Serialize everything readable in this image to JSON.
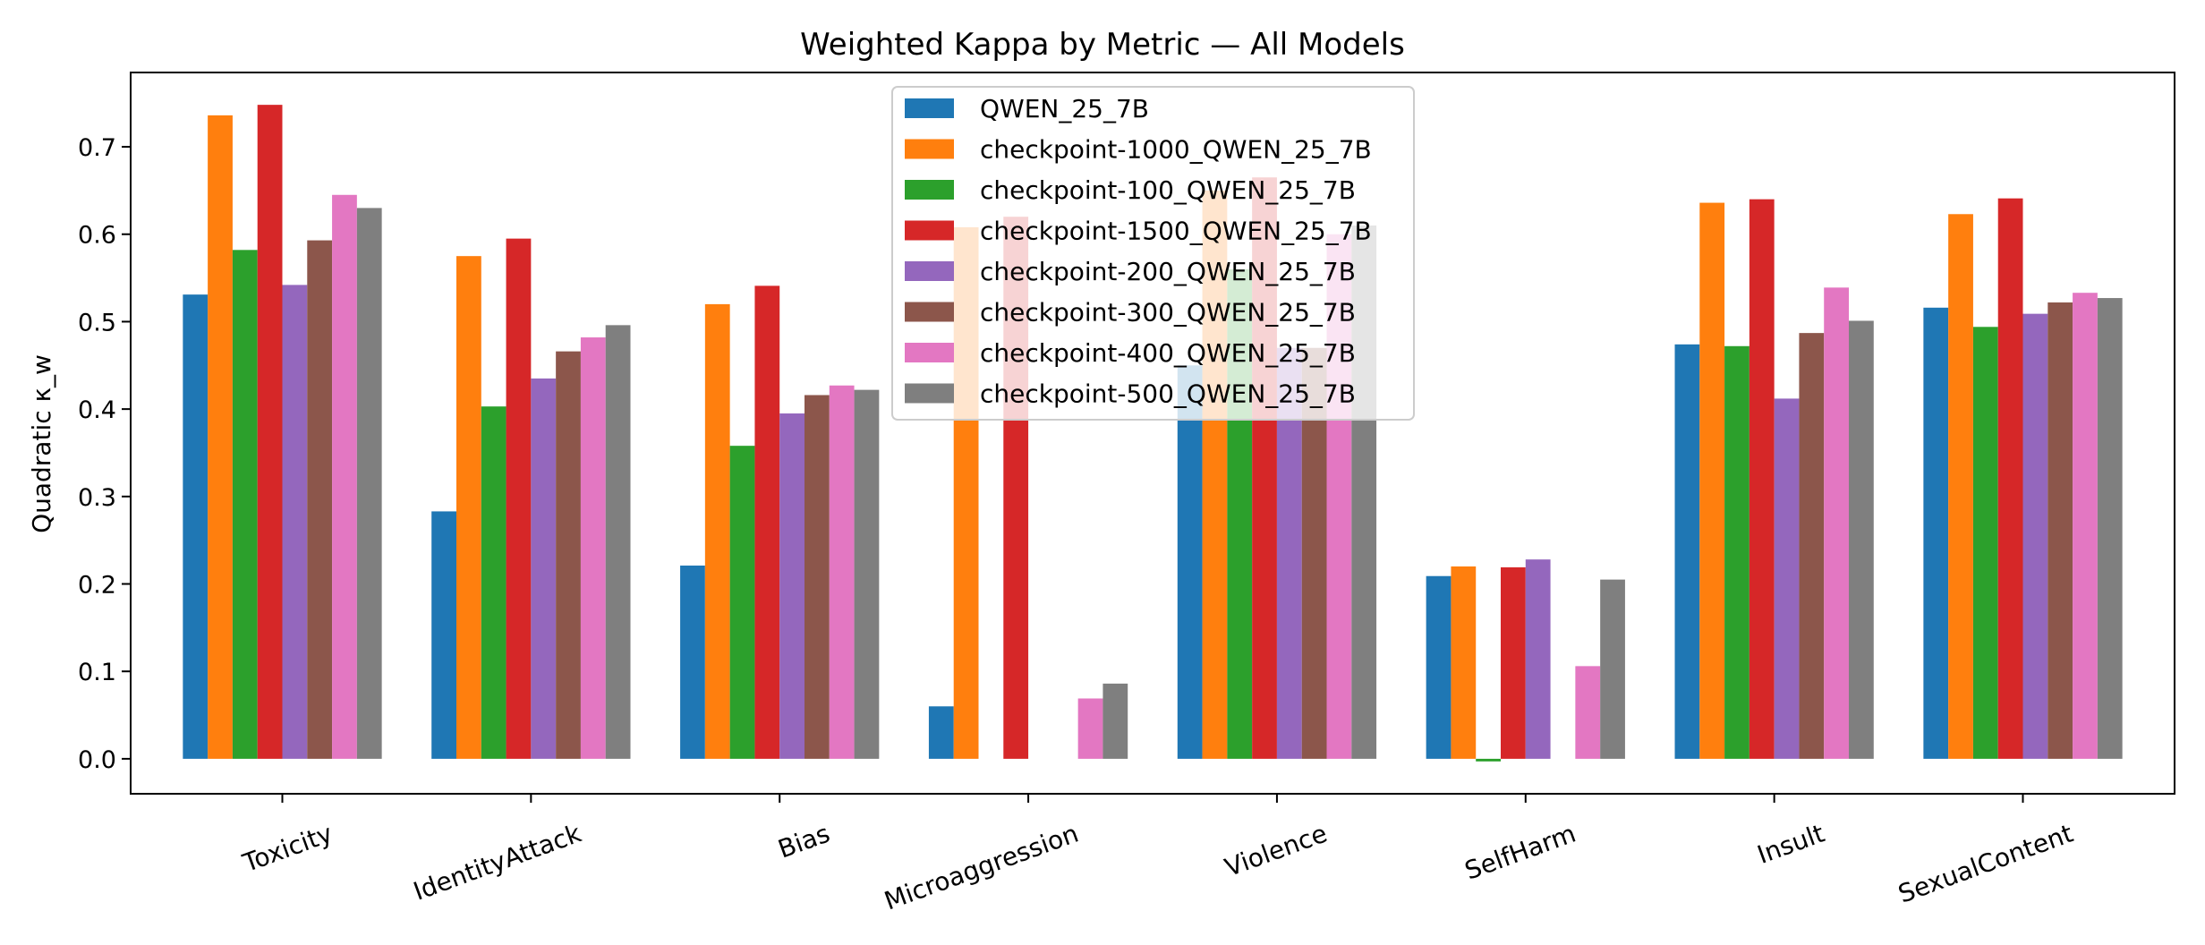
{
  "chart_data": {
    "type": "bar",
    "title": "Weighted Kappa by Metric — All Models",
    "xlabel": "",
    "ylabel": "Quadratic κ_w",
    "ylim": [
      -0.04,
      0.785
    ],
    "yticks": [
      0.0,
      0.1,
      0.2,
      0.3,
      0.4,
      0.5,
      0.6,
      0.7
    ],
    "ytick_labels": [
      "0.0",
      "0.1",
      "0.2",
      "0.3",
      "0.4",
      "0.5",
      "0.6",
      "0.7"
    ],
    "grid": false,
    "legend_position": "top-center",
    "categories": [
      "Toxicity",
      "IdentityAttack",
      "Bias",
      "Microaggression",
      "Violence",
      "SelfHarm",
      "Insult",
      "SexualContent"
    ],
    "series": [
      {
        "name": "QWEN_25_7B",
        "color": "#1f77b4",
        "values": [
          0.531,
          0.283,
          0.221,
          0.06,
          0.45,
          0.209,
          0.474,
          0.516
        ]
      },
      {
        "name": "checkpoint-1000_QWEN_25_7B",
        "color": "#ff7f0e",
        "values": [
          0.736,
          0.575,
          0.52,
          0.608,
          0.65,
          0.22,
          0.636,
          0.623
        ]
      },
      {
        "name": "checkpoint-100_QWEN_25_7B",
        "color": "#2ca02c",
        "values": [
          0.582,
          0.403,
          0.358,
          0.0,
          0.56,
          -0.003,
          0.472,
          0.494
        ]
      },
      {
        "name": "checkpoint-1500_QWEN_25_7B",
        "color": "#d62728",
        "values": [
          0.748,
          0.595,
          0.541,
          0.62,
          0.665,
          0.219,
          0.64,
          0.641
        ]
      },
      {
        "name": "checkpoint-200_QWEN_25_7B",
        "color": "#9467bd",
        "values": [
          0.542,
          0.435,
          0.395,
          0.0,
          0.47,
          0.228,
          0.412,
          0.509
        ]
      },
      {
        "name": "checkpoint-300_QWEN_25_7B",
        "color": "#8c564b",
        "values": [
          0.593,
          0.466,
          0.416,
          0.0,
          0.47,
          0.0,
          0.487,
          0.522
        ]
      },
      {
        "name": "checkpoint-400_QWEN_25_7B",
        "color": "#e377c2",
        "values": [
          0.645,
          0.482,
          0.427,
          0.069,
          0.6,
          0.106,
          0.539,
          0.533
        ]
      },
      {
        "name": "checkpoint-500_QWEN_25_7B",
        "color": "#7f7f7f",
        "values": [
          0.63,
          0.496,
          0.422,
          0.086,
          0.61,
          0.205,
          0.501,
          0.527
        ]
      }
    ]
  }
}
